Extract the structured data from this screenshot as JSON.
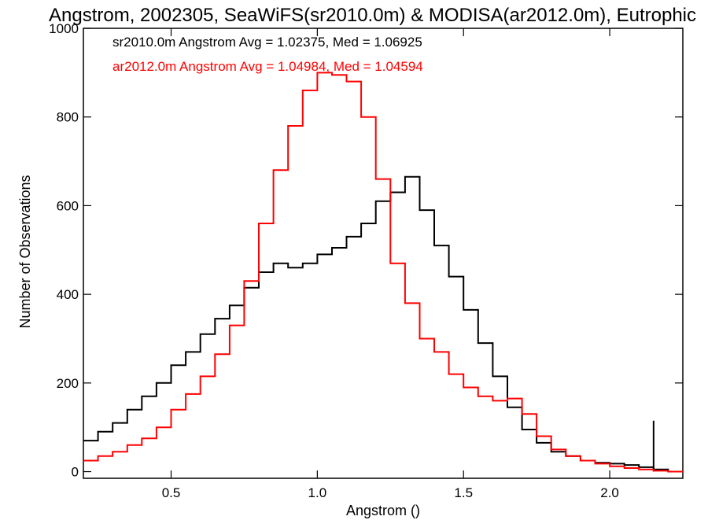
{
  "chart_data": {
    "type": "line",
    "title": "Angstrom, 2002305, SeaWiFS(sr2010.0m) & MODISA(ar2012.0m), Eutrophic",
    "xlabel": "Angstrom ()",
    "ylabel": "Number of Observations",
    "xlim": [
      0.2,
      2.25
    ],
    "ylim": [
      -15,
      1000
    ],
    "x_ticks": [
      {
        "value": 0.5,
        "label": "0.5"
      },
      {
        "value": 1.0,
        "label": "1.0"
      },
      {
        "value": 1.5,
        "label": "1.5"
      },
      {
        "value": 2.0,
        "label": "2.0"
      }
    ],
    "y_ticks": [
      {
        "value": 0,
        "label": "0"
      },
      {
        "value": 200,
        "label": "200"
      },
      {
        "value": 400,
        "label": "400"
      },
      {
        "value": 600,
        "label": "600"
      },
      {
        "value": 800,
        "label": "800"
      },
      {
        "value": 1000,
        "label": "1000"
      }
    ],
    "legend_placement": "top-left",
    "grid": false,
    "series": [
      {
        "name": "sr2010.0m",
        "label": "sr2010.0m Angstrom Avg = 1.02375, Med = 1.06925",
        "color": "#000000",
        "x": [
          0.2,
          0.25,
          0.3,
          0.35,
          0.4,
          0.45,
          0.5,
          0.55,
          0.6,
          0.65,
          0.7,
          0.75,
          0.8,
          0.85,
          0.9,
          0.95,
          1.0,
          1.05,
          1.1,
          1.15,
          1.2,
          1.25,
          1.3,
          1.35,
          1.4,
          1.45,
          1.5,
          1.55,
          1.6,
          1.65,
          1.7,
          1.75,
          1.8,
          1.85,
          1.9,
          1.95,
          2.0,
          2.05,
          2.1,
          2.15,
          2.2,
          2.25
        ],
        "values": [
          70,
          90,
          110,
          140,
          170,
          200,
          240,
          270,
          310,
          345,
          375,
          415,
          450,
          470,
          460,
          470,
          490,
          505,
          530,
          560,
          610,
          630,
          665,
          590,
          510,
          440,
          365,
          290,
          215,
          145,
          95,
          65,
          45,
          35,
          25,
          20,
          18,
          15,
          10,
          5,
          0,
          0
        ],
        "spike": {
          "x": 2.15,
          "value": 115
        }
      },
      {
        "name": "ar2012.0m",
        "label": "ar2012.0m Angstrom Avg = 1.04984, Med = 1.04594",
        "color": "#ff0000",
        "x": [
          0.2,
          0.25,
          0.3,
          0.35,
          0.4,
          0.45,
          0.5,
          0.55,
          0.6,
          0.65,
          0.7,
          0.75,
          0.8,
          0.85,
          0.9,
          0.95,
          1.0,
          1.05,
          1.1,
          1.15,
          1.2,
          1.25,
          1.3,
          1.35,
          1.4,
          1.45,
          1.5,
          1.55,
          1.6,
          1.65,
          1.7,
          1.75,
          1.8,
          1.85,
          1.9,
          1.95,
          2.0,
          2.05,
          2.1,
          2.15,
          2.2,
          2.25
        ],
        "values": [
          25,
          35,
          45,
          60,
          75,
          100,
          140,
          175,
          215,
          265,
          330,
          430,
          560,
          680,
          780,
          860,
          900,
          895,
          880,
          800,
          660,
          470,
          380,
          300,
          270,
          220,
          190,
          170,
          160,
          165,
          130,
          80,
          50,
          35,
          25,
          18,
          12,
          8,
          5,
          2,
          0,
          0
        ]
      }
    ]
  }
}
